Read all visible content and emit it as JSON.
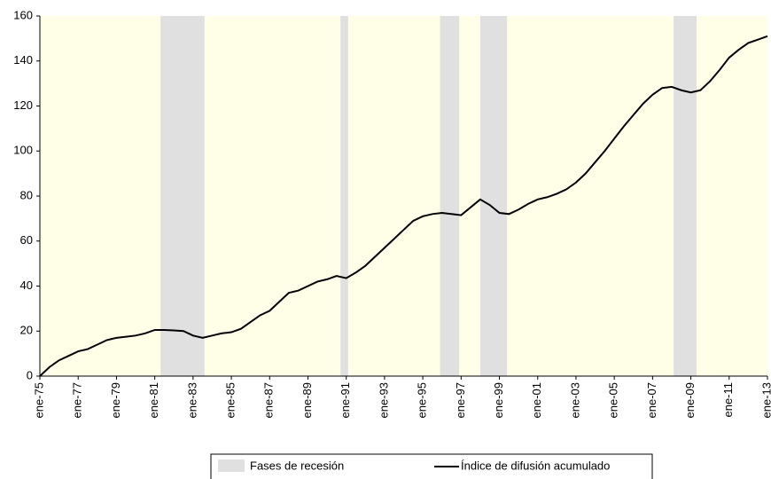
{
  "chart_data": {
    "type": "line",
    "x": [
      1975,
      1975.5,
      1976,
      1976.5,
      1977,
      1977.5,
      1978,
      1978.5,
      1979,
      1979.5,
      1980,
      1980.5,
      1981,
      1981.5,
      1982,
      1982.5,
      1983,
      1983.5,
      1984,
      1984.5,
      1985,
      1985.5,
      1986,
      1986.5,
      1987,
      1987.5,
      1988,
      1988.5,
      1989,
      1989.5,
      1990,
      1990.5,
      1991,
      1991.5,
      1992,
      1992.5,
      1993,
      1993.5,
      1994,
      1994.5,
      1995,
      1995.5,
      1996,
      1996.5,
      1997,
      1997.5,
      1998,
      1998.5,
      1999,
      1999.5,
      2000,
      2000.5,
      2001,
      2001.5,
      2002,
      2002.5,
      2003,
      2003.5,
      2004,
      2004.5,
      2005,
      2005.5,
      2006,
      2006.5,
      2007,
      2007.5,
      2008,
      2008.5,
      2009,
      2009.5,
      2010,
      2010.5,
      2011,
      2011.5,
      2012,
      2012.5,
      2013
    ],
    "series": [
      {
        "name": "Índice de difusión acumulado",
        "color": "#000000",
        "values": [
          0,
          4,
          7,
          9,
          11,
          12,
          14,
          16,
          17,
          17.5,
          18,
          19,
          20.5,
          20.5,
          20.3,
          20,
          18,
          17,
          18,
          19,
          19.5,
          21,
          24,
          27,
          29,
          33,
          37,
          38,
          40,
          42,
          43,
          44.5,
          43.5,
          46,
          49,
          53,
          57,
          61,
          65,
          69,
          71,
          72,
          72.5,
          72,
          71.5,
          75,
          78.5,
          76,
          72.5,
          72,
          74,
          76.5,
          78.5,
          79.5,
          81,
          83,
          86,
          90,
          95,
          100,
          105.5,
          111,
          116,
          121,
          125,
          128,
          128.5,
          127,
          126,
          127,
          131,
          136,
          141.5,
          145,
          148,
          149.5,
          151
        ]
      }
    ],
    "bands": {
      "name": "Fases de recesión",
      "color": "#e0e0e0",
      "ranges": [
        [
          1981.3,
          1983.6
        ],
        [
          1990.7,
          1991.1
        ],
        [
          1995.9,
          1996.9
        ],
        [
          1998.0,
          1999.4
        ],
        [
          2008.1,
          2009.3
        ]
      ]
    },
    "xlim": [
      1975,
      2013
    ],
    "xticks": [
      {
        "value": 1975,
        "label": "ene-75"
      },
      {
        "value": 1977,
        "label": "ene-77"
      },
      {
        "value": 1979,
        "label": "ene-79"
      },
      {
        "value": 1981,
        "label": "ene-81"
      },
      {
        "value": 1983,
        "label": "ene-83"
      },
      {
        "value": 1985,
        "label": "ene-85"
      },
      {
        "value": 1987,
        "label": "ene-87"
      },
      {
        "value": 1989,
        "label": "ene-89"
      },
      {
        "value": 1991,
        "label": "ene-91"
      },
      {
        "value": 1993,
        "label": "ene-93"
      },
      {
        "value": 1995,
        "label": "ene-95"
      },
      {
        "value": 1997,
        "label": "ene-97"
      },
      {
        "value": 1999,
        "label": "ene-99"
      },
      {
        "value": 2001,
        "label": "ene-01"
      },
      {
        "value": 2003,
        "label": "ene-03"
      },
      {
        "value": 2005,
        "label": "ene-05"
      },
      {
        "value": 2007,
        "label": "ene-07"
      },
      {
        "value": 2009,
        "label": "ene-09"
      },
      {
        "value": 2011,
        "label": "ene-11"
      },
      {
        "value": 2013,
        "label": "ene-13"
      }
    ],
    "ylim": [
      0,
      160
    ],
    "yticks": [
      0,
      20,
      40,
      60,
      80,
      100,
      120,
      140,
      160
    ],
    "plot_background": "#ffffe8"
  }
}
